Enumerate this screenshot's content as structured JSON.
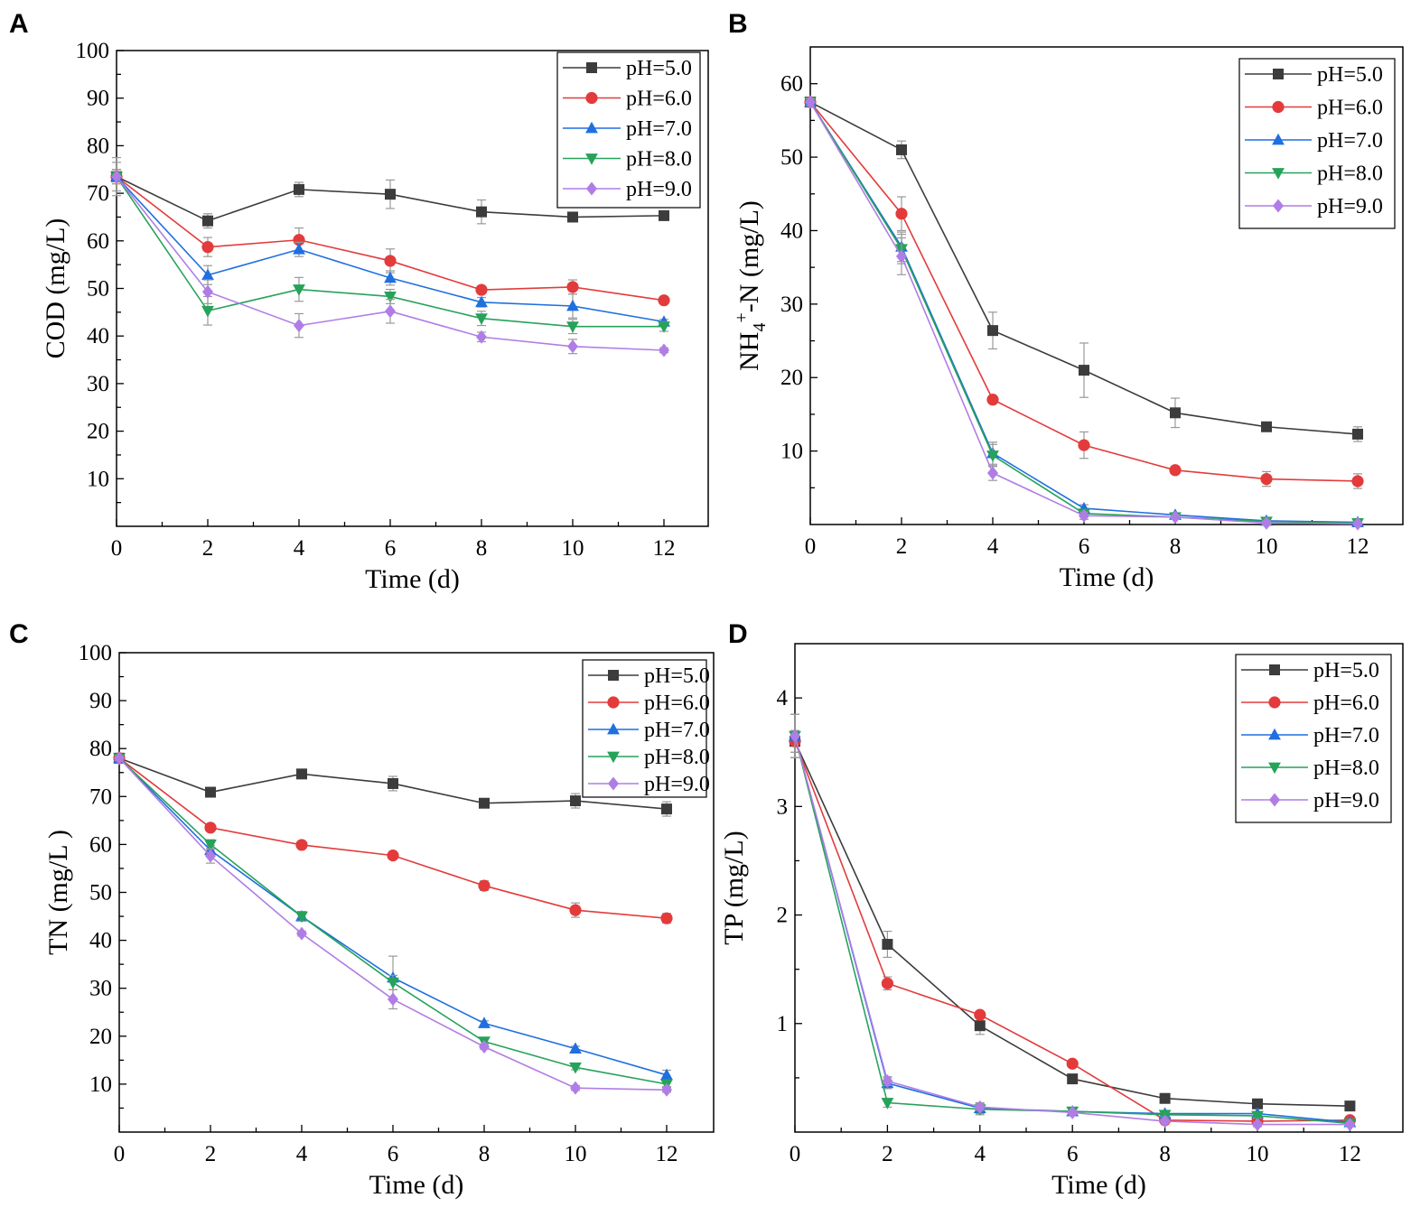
{
  "colors": {
    "pH=5.0": "#3c3c3c",
    "pH=6.0": "#e33b3b",
    "pH=7.0": "#1f6fe0",
    "pH=8.0": "#27a25a",
    "pH=9.0": "#b07de6"
  },
  "chart_data": [
    {
      "panel": "A",
      "type": "line",
      "title": "",
      "xlabel": "Time (d)",
      "ylabel": "COD (mg/L)",
      "x": [
        0,
        2,
        4,
        6,
        8,
        10,
        12
      ],
      "xticks": [
        "0",
        "2",
        "4",
        "6",
        "8",
        "10",
        "12"
      ],
      "yticks": [
        "10",
        "20",
        "30",
        "40",
        "50",
        "60",
        "70",
        "80",
        "90",
        "100"
      ],
      "xlim": [
        0,
        13
      ],
      "ylim": [
        0,
        100
      ],
      "legend": "top-right",
      "series": [
        {
          "name": "pH=5.0",
          "marker": "square",
          "values": [
            73.5,
            64.2,
            70.8,
            69.8,
            66.1,
            65.0,
            65.3
          ],
          "errors": [
            1.5,
            1.5,
            1.5,
            3.0,
            2.5,
            1.0,
            0.5
          ]
        },
        {
          "name": "pH=6.0",
          "marker": "circle",
          "values": [
            73.5,
            58.7,
            60.2,
            55.8,
            49.7,
            50.3,
            47.5
          ],
          "errors": [
            1.5,
            2.0,
            2.5,
            2.5,
            0.5,
            1.5,
            0.5
          ]
        },
        {
          "name": "pH=7.0",
          "marker": "triangle-up",
          "values": [
            73.5,
            52.8,
            58.2,
            52.2,
            47.1,
            46.3,
            43.0
          ],
          "errors": [
            4.0,
            2.0,
            1.5,
            1.5,
            1.0,
            2.5,
            0.5
          ]
        },
        {
          "name": "pH=8.0",
          "marker": "triangle-down",
          "values": [
            73.5,
            45.3,
            49.8,
            48.3,
            43.7,
            42.0,
            42.0
          ],
          "errors": [
            3.0,
            3.0,
            2.5,
            1.5,
            1.5,
            1.5,
            1.0
          ]
        },
        {
          "name": "pH=9.0",
          "marker": "diamond",
          "values": [
            73.5,
            49.3,
            42.2,
            45.2,
            39.8,
            37.8,
            37.0
          ],
          "errors": [
            1.5,
            2.5,
            2.5,
            2.5,
            1.0,
            1.5,
            0.5
          ]
        }
      ]
    },
    {
      "panel": "B",
      "type": "line",
      "title": "",
      "xlabel": "Time (d)",
      "ylabel": "NH4+-N (mg/L)",
      "ylabel_base": "NH",
      "ylabel_sub": "4",
      "ylabel_sup": "+",
      "ylabel_rest": "-N (mg/L)",
      "x": [
        0,
        2,
        4,
        6,
        8,
        10,
        12
      ],
      "xticks": [
        "0",
        "2",
        "4",
        "6",
        "8",
        "10",
        "12"
      ],
      "yticks": [
        "10",
        "20",
        "30",
        "40",
        "50",
        "60"
      ],
      "xlim": [
        0,
        13
      ],
      "ylim": [
        0,
        65
      ],
      "legend": "top-right",
      "series": [
        {
          "name": "pH=5.0",
          "marker": "square",
          "values": [
            57.5,
            51.0,
            26.4,
            21.0,
            15.2,
            13.3,
            12.3
          ],
          "errors": [
            0.5,
            1.2,
            2.5,
            3.7,
            2.0,
            0.5,
            1.0
          ]
        },
        {
          "name": "pH=6.0",
          "marker": "circle",
          "values": [
            57.5,
            42.3,
            17.0,
            10.8,
            7.4,
            6.2,
            5.9
          ],
          "errors": [
            0.5,
            2.3,
            0.5,
            1.8,
            0.5,
            1.0,
            1.0
          ]
        },
        {
          "name": "pH=7.0",
          "marker": "triangle-up",
          "values": [
            57.5,
            37.8,
            9.7,
            2.2,
            1.3,
            0.5,
            0.3
          ],
          "errors": [
            0.5,
            2.0,
            1.5,
            0.5,
            0.3,
            0.3,
            0.2
          ]
        },
        {
          "name": "pH=8.0",
          "marker": "triangle-down",
          "values": [
            57.5,
            37.5,
            9.4,
            1.5,
            1.0,
            0.4,
            0.2
          ],
          "errors": [
            0.5,
            2.0,
            1.5,
            0.5,
            0.3,
            0.3,
            0.2
          ]
        },
        {
          "name": "pH=9.0",
          "marker": "diamond",
          "values": [
            57.5,
            36.5,
            7.0,
            1.2,
            1.0,
            0.2,
            0.1
          ],
          "errors": [
            0.5,
            2.5,
            1.0,
            0.5,
            0.3,
            0.3,
            0.2
          ]
        }
      ]
    },
    {
      "panel": "C",
      "type": "line",
      "title": "",
      "xlabel": "Time (d)",
      "ylabel": "TN (mg/L )",
      "x": [
        0,
        2,
        4,
        6,
        8,
        10,
        12
      ],
      "xticks": [
        "0",
        "2",
        "4",
        "6",
        "8",
        "10",
        "12"
      ],
      "yticks": [
        "10",
        "20",
        "30",
        "40",
        "50",
        "60",
        "70",
        "80",
        "90",
        "100"
      ],
      "xlim": [
        0,
        13
      ],
      "ylim": [
        0,
        100
      ],
      "legend": "top-right",
      "series": [
        {
          "name": "pH=5.0",
          "marker": "square",
          "values": [
            78.0,
            70.9,
            74.7,
            72.7,
            68.6,
            69.1,
            67.4
          ],
          "errors": [
            0.5,
            0.8,
            0.5,
            1.5,
            0.5,
            1.5,
            1.5
          ]
        },
        {
          "name": "pH=6.0",
          "marker": "circle",
          "values": [
            78.0,
            63.5,
            59.9,
            57.7,
            51.4,
            46.3,
            44.6
          ],
          "errors": [
            0.5,
            0.5,
            0.5,
            0.5,
            1.0,
            1.5,
            1.0
          ]
        },
        {
          "name": "pH=7.0",
          "marker": "triangle-up",
          "values": [
            78.0,
            58.8,
            45.0,
            32.2,
            22.7,
            17.4,
            11.9
          ],
          "errors": [
            0.5,
            1.0,
            1.0,
            4.5,
            0.5,
            0.5,
            1.0
          ]
        },
        {
          "name": "pH=8.0",
          "marker": "triangle-down",
          "values": [
            78.0,
            60.0,
            45.0,
            31.2,
            18.9,
            13.5,
            10.0
          ],
          "errors": [
            0.5,
            1.0,
            1.0,
            1.5,
            0.5,
            0.5,
            0.5
          ]
        },
        {
          "name": "pH=9.0",
          "marker": "diamond",
          "values": [
            78.0,
            57.6,
            41.4,
            27.7,
            17.8,
            9.2,
            8.8
          ],
          "errors": [
            0.5,
            1.5,
            0.5,
            2.0,
            0.5,
            0.5,
            0.5
          ]
        }
      ]
    },
    {
      "panel": "D",
      "type": "line",
      "title": "",
      "xlabel": "Time (d)",
      "ylabel": "TP (mg/L)",
      "x": [
        0,
        2,
        4,
        6,
        8,
        10,
        12
      ],
      "xticks": [
        "0",
        "2",
        "4",
        "6",
        "8",
        "10",
        "12"
      ],
      "yticks": [
        "1",
        "2",
        "3",
        "4"
      ],
      "xlim": [
        0,
        13
      ],
      "ylim": [
        0,
        4.5
      ],
      "legend": "top-right",
      "series": [
        {
          "name": "pH=5.0",
          "marker": "square",
          "values": [
            3.6,
            1.73,
            0.98,
            0.49,
            0.31,
            0.26,
            0.24
          ],
          "errors": [
            0.1,
            0.12,
            0.08,
            0.03,
            0.02,
            0.02,
            0.02
          ]
        },
        {
          "name": "pH=6.0",
          "marker": "circle",
          "values": [
            3.6,
            1.37,
            1.08,
            0.63,
            0.11,
            0.1,
            0.11
          ],
          "errors": [
            0.1,
            0.06,
            0.03,
            0.03,
            0.02,
            0.02,
            0.02
          ]
        },
        {
          "name": "pH=7.0",
          "marker": "triangle-up",
          "values": [
            3.65,
            0.45,
            0.22,
            0.19,
            0.17,
            0.17,
            0.09
          ],
          "errors": [
            0.2,
            0.05,
            0.05,
            0.03,
            0.02,
            0.02,
            0.02
          ]
        },
        {
          "name": "pH=8.0",
          "marker": "triangle-down",
          "values": [
            3.65,
            0.27,
            0.21,
            0.19,
            0.16,
            0.15,
            0.08
          ],
          "errors": [
            0.2,
            0.04,
            0.05,
            0.03,
            0.02,
            0.02,
            0.02
          ]
        },
        {
          "name": "pH=9.0",
          "marker": "diamond",
          "values": [
            3.65,
            0.47,
            0.23,
            0.18,
            0.1,
            0.07,
            0.07
          ],
          "errors": [
            0.2,
            0.04,
            0.03,
            0.02,
            0.02,
            0.02,
            0.02
          ]
        }
      ]
    }
  ]
}
